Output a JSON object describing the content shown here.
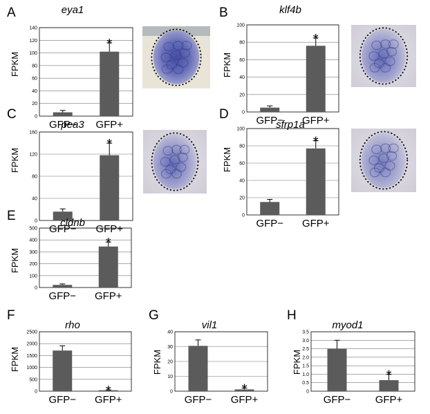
{
  "figure": {
    "y_label": "FPKM",
    "colors": {
      "bar": "#5b5b5b",
      "grid": "#777777"
    }
  },
  "chart_data": [
    {
      "id": "A",
      "type": "bar",
      "title": "eya1",
      "ylabel": "FPKM",
      "categories": [
        "GFP−",
        "GFP+"
      ],
      "values": [
        6,
        102
      ],
      "errors": [
        3,
        14
      ],
      "ylim": [
        0,
        140
      ],
      "ticks": [
        0,
        20,
        40,
        60,
        80,
        100,
        120,
        140
      ],
      "significance": [
        null,
        "*"
      ],
      "has_image": true
    },
    {
      "id": "B",
      "type": "bar",
      "title": "klf4b",
      "ylabel": "FPKM",
      "categories": [
        "GFP−",
        "GFP+"
      ],
      "values": [
        5,
        76
      ],
      "errors": [
        2,
        9
      ],
      "ylim": [
        0,
        100
      ],
      "ticks": [
        0,
        20,
        40,
        60,
        80,
        100
      ],
      "significance": [
        null,
        "*"
      ],
      "has_image": true
    },
    {
      "id": "C",
      "type": "bar",
      "title": "pea3",
      "ylabel": "FPKM",
      "categories": [
        "GFP−",
        "GFP+"
      ],
      "values": [
        16,
        118
      ],
      "errors": [
        5,
        22
      ],
      "ylim": [
        0,
        160
      ],
      "ticks": [
        0,
        40,
        80,
        120,
        160
      ],
      "significance": [
        null,
        "*"
      ],
      "has_image": true
    },
    {
      "id": "D",
      "type": "bar",
      "title": "sfrp1a",
      "ylabel": "FPKM",
      "categories": [
        "GFP−",
        "GFP+"
      ],
      "values": [
        15,
        77
      ],
      "errors": [
        3,
        9
      ],
      "ylim": [
        0,
        100
      ],
      "ticks": [
        0,
        20,
        40,
        60,
        80,
        100
      ],
      "significance": [
        null,
        "*"
      ],
      "has_image": true
    },
    {
      "id": "E",
      "type": "bar",
      "title": "cldnb",
      "ylabel": "FPKM",
      "categories": [
        "GFP−",
        "GFP+"
      ],
      "values": [
        22,
        345
      ],
      "errors": [
        8,
        38
      ],
      "ylim": [
        0,
        500
      ],
      "ticks": [
        0,
        100,
        200,
        300,
        400,
        500
      ],
      "significance": [
        null,
        "*"
      ],
      "has_image": false
    },
    {
      "id": "F",
      "type": "bar",
      "title": "rho",
      "ylabel": "FPKM",
      "categories": [
        "GFP−",
        "GFP+"
      ],
      "values": [
        1710,
        40
      ],
      "errors": [
        200,
        15
      ],
      "ylim": [
        0,
        2500
      ],
      "ticks": [
        0,
        500,
        1000,
        1500,
        2000,
        2500
      ],
      "significance": [
        null,
        "*"
      ],
      "has_image": false
    },
    {
      "id": "G",
      "type": "bar",
      "title": "vil1",
      "ylabel": "FPKM",
      "categories": [
        "GFP−",
        "GFP+"
      ],
      "values": [
        30.5,
        1.2
      ],
      "errors": [
        4,
        1
      ],
      "ylim": [
        0,
        40
      ],
      "ticks": [
        0,
        10,
        20,
        30,
        40
      ],
      "significance": [
        null,
        "*"
      ],
      "has_image": false
    },
    {
      "id": "H",
      "type": "bar",
      "title": "myod1",
      "ylabel": "FPKM",
      "categories": [
        "GFP−",
        "GFP+"
      ],
      "values": [
        2.5,
        0.65
      ],
      "errors": [
        0.5,
        0.35
      ],
      "ylim": [
        0,
        3.5
      ],
      "ticks": [
        0,
        0.5,
        1.0,
        1.5,
        2.0,
        2.5,
        3.0,
        3.5
      ],
      "tick_labels": [
        "0",
        "0.5",
        "1.0",
        "1.5",
        "2.0",
        "2.5",
        "3.0",
        "3.5"
      ],
      "significance": [
        null,
        "*"
      ],
      "has_image": false
    }
  ]
}
